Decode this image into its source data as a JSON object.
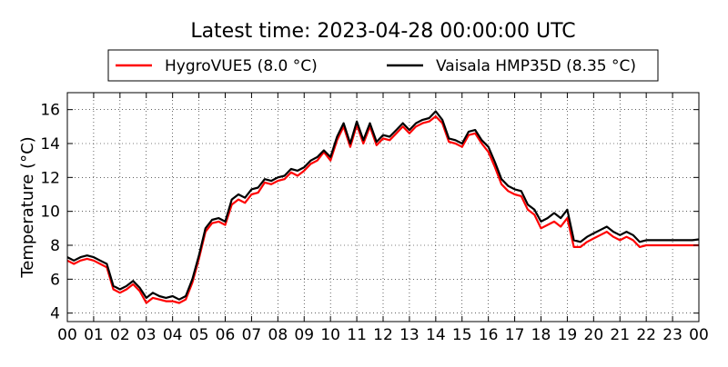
{
  "chart_data": {
    "type": "line",
    "title": "Latest time: 2023-04-28 00:00:00 UTC",
    "xlabel": "",
    "ylabel": "Temperature (°C)",
    "xlim": [
      0,
      24
    ],
    "ylim": [
      3.5,
      17
    ],
    "grid": true,
    "legend_position": "top-center",
    "x_tick_labels": [
      "00",
      "01",
      "02",
      "03",
      "04",
      "05",
      "06",
      "07",
      "08",
      "09",
      "10",
      "11",
      "12",
      "13",
      "14",
      "15",
      "16",
      "17",
      "18",
      "19",
      "20",
      "21",
      "22",
      "23",
      "00"
    ],
    "y_ticks": [
      4,
      6,
      8,
      10,
      12,
      14,
      16
    ],
    "series": [
      {
        "name": "HygroVUE5 (8.0 °C)",
        "color": "#ff0000",
        "x": [
          0,
          0.25,
          0.5,
          0.75,
          1.0,
          1.25,
          1.5,
          1.75,
          2.0,
          2.25,
          2.5,
          2.75,
          3.0,
          3.25,
          3.5,
          3.75,
          4.0,
          4.25,
          4.5,
          4.75,
          5.0,
          5.25,
          5.5,
          5.75,
          6.0,
          6.25,
          6.5,
          6.75,
          7.0,
          7.25,
          7.5,
          7.75,
          8.0,
          8.25,
          8.5,
          8.75,
          9.0,
          9.25,
          9.5,
          9.75,
          10.0,
          10.25,
          10.5,
          10.75,
          11.0,
          11.25,
          11.5,
          11.75,
          12.0,
          12.25,
          12.5,
          12.75,
          13.0,
          13.25,
          13.5,
          13.75,
          14.0,
          14.25,
          14.5,
          14.75,
          15.0,
          15.25,
          15.5,
          15.75,
          16.0,
          16.25,
          16.5,
          16.75,
          17.0,
          17.25,
          17.5,
          17.75,
          18.0,
          18.25,
          18.5,
          18.75,
          19.0,
          19.25,
          19.5,
          19.75,
          20.0,
          20.25,
          20.5,
          20.75,
          21.0,
          21.25,
          21.5,
          21.75,
          22.0,
          22.25,
          22.5,
          22.75,
          23.0,
          23.25,
          23.5,
          23.75,
          24.0
        ],
        "values": [
          7.1,
          6.9,
          7.1,
          7.2,
          7.1,
          6.9,
          6.7,
          5.4,
          5.2,
          5.4,
          5.7,
          5.3,
          4.6,
          4.9,
          4.8,
          4.7,
          4.7,
          4.6,
          4.8,
          5.8,
          7.2,
          8.8,
          9.3,
          9.4,
          9.2,
          10.4,
          10.7,
          10.5,
          11.0,
          11.1,
          11.7,
          11.6,
          11.8,
          11.9,
          12.3,
          12.1,
          12.4,
          12.8,
          13.0,
          13.5,
          13.0,
          14.2,
          15.0,
          13.8,
          15.1,
          14.0,
          15.0,
          13.9,
          14.3,
          14.2,
          14.6,
          15.0,
          14.6,
          15.0,
          15.2,
          15.3,
          15.6,
          15.2,
          14.1,
          14.0,
          13.8,
          14.5,
          14.6,
          14.0,
          13.5,
          12.6,
          11.6,
          11.2,
          11.0,
          10.9,
          10.1,
          9.8,
          9.0,
          9.2,
          9.4,
          9.1,
          9.6,
          7.9,
          7.9,
          8.2,
          8.4,
          8.6,
          8.8,
          8.5,
          8.3,
          8.5,
          8.3,
          7.9,
          8.0,
          8.0,
          8.0,
          8.0,
          8.0,
          8.0,
          8.0,
          8.0,
          8.0
        ]
      },
      {
        "name": "Vaisala HMP35D (8.35 °C)",
        "color": "#000000",
        "x": [
          0,
          0.25,
          0.5,
          0.75,
          1.0,
          1.25,
          1.5,
          1.75,
          2.0,
          2.25,
          2.5,
          2.75,
          3.0,
          3.25,
          3.5,
          3.75,
          4.0,
          4.25,
          4.5,
          4.75,
          5.0,
          5.25,
          5.5,
          5.75,
          6.0,
          6.25,
          6.5,
          6.75,
          7.0,
          7.25,
          7.5,
          7.75,
          8.0,
          8.25,
          8.5,
          8.75,
          9.0,
          9.25,
          9.5,
          9.75,
          10.0,
          10.25,
          10.5,
          10.75,
          11.0,
          11.25,
          11.5,
          11.75,
          12.0,
          12.25,
          12.5,
          12.75,
          13.0,
          13.25,
          13.5,
          13.75,
          14.0,
          14.25,
          14.5,
          14.75,
          15.0,
          15.25,
          15.5,
          15.75,
          16.0,
          16.25,
          16.5,
          16.75,
          17.0,
          17.25,
          17.5,
          17.75,
          18.0,
          18.25,
          18.5,
          18.75,
          19.0,
          19.25,
          19.5,
          19.75,
          20.0,
          20.25,
          20.5,
          20.75,
          21.0,
          21.25,
          21.5,
          21.75,
          22.0,
          22.25,
          22.5,
          22.75,
          23.0,
          23.25,
          23.5,
          23.75,
          24.0
        ],
        "values": [
          7.3,
          7.1,
          7.3,
          7.4,
          7.3,
          7.1,
          6.9,
          5.6,
          5.4,
          5.6,
          5.9,
          5.5,
          4.9,
          5.2,
          5.0,
          4.9,
          5.0,
          4.8,
          5.0,
          6.0,
          7.4,
          9.0,
          9.5,
          9.6,
          9.4,
          10.7,
          11.0,
          10.8,
          11.3,
          11.4,
          11.9,
          11.8,
          12.0,
          12.1,
          12.5,
          12.4,
          12.6,
          13.0,
          13.2,
          13.6,
          13.2,
          14.4,
          15.2,
          14.0,
          15.3,
          14.2,
          15.2,
          14.1,
          14.5,
          14.4,
          14.8,
          15.2,
          14.8,
          15.2,
          15.4,
          15.5,
          15.9,
          15.4,
          14.3,
          14.2,
          14.0,
          14.7,
          14.8,
          14.2,
          13.8,
          12.9,
          11.9,
          11.5,
          11.3,
          11.2,
          10.4,
          10.1,
          9.4,
          9.6,
          9.9,
          9.6,
          10.1,
          8.3,
          8.2,
          8.5,
          8.7,
          8.9,
          9.1,
          8.8,
          8.6,
          8.8,
          8.6,
          8.2,
          8.3,
          8.3,
          8.3,
          8.3,
          8.3,
          8.3,
          8.3,
          8.3,
          8.35
        ]
      }
    ]
  }
}
